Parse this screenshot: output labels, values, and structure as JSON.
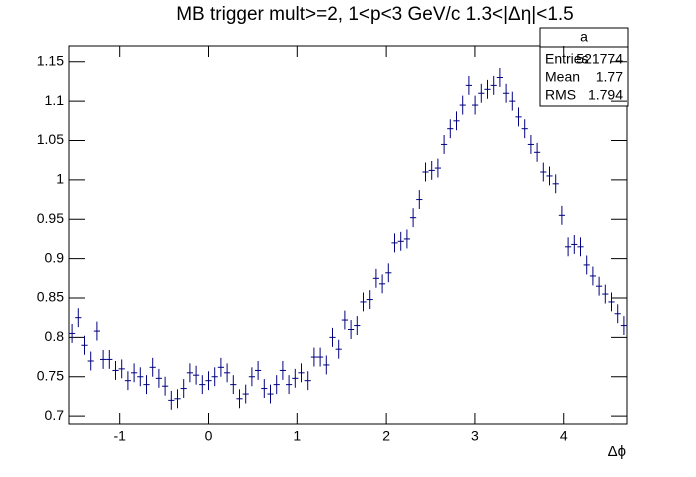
{
  "chart_data": {
    "type": "errorbar-histogram",
    "title": "MB trigger mult>=2, 1<p<3 GeV/c 1.3<|Δη|<1.5",
    "x_label": "Δϕ",
    "color": "#000080",
    "xlim": [
      -1.5708,
      4.7124
    ],
    "xticks": [
      -1,
      0,
      1,
      2,
      3,
      4
    ],
    "ylim": [
      0.69,
      1.17
    ],
    "yticks": [
      0.7,
      0.75,
      0.8,
      0.85,
      0.9,
      0.95,
      1,
      1.05,
      1.1,
      1.15
    ],
    "error": 0.012,
    "values": [
      0.805,
      0.825,
      0.79,
      0.77,
      0.808,
      0.772,
      0.772,
      0.758,
      0.76,
      0.745,
      0.755,
      0.75,
      0.74,
      0.762,
      0.748,
      0.738,
      0.72,
      0.722,
      0.735,
      0.755,
      0.752,
      0.74,
      0.745,
      0.75,
      0.762,
      0.755,
      0.74,
      0.722,
      0.728,
      0.75,
      0.758,
      0.735,
      0.728,
      0.74,
      0.758,
      0.74,
      0.748,
      0.755,
      0.745,
      0.775,
      0.775,
      0.765,
      0.8,
      0.785,
      0.822,
      0.81,
      0.815,
      0.845,
      0.848,
      0.875,
      0.868,
      0.882,
      0.92,
      0.922,
      0.925,
      0.952,
      0.975,
      1.01,
      1.012,
      1.015,
      1.045,
      1.065,
      1.075,
      1.095,
      1.12,
      1.095,
      1.11,
      1.115,
      1.12,
      1.13,
      1.11,
      1.1,
      1.08,
      1.065,
      1.045,
      1.035,
      1.01,
      1.005,
      0.995,
      0.955,
      0.915,
      0.918,
      0.915,
      0.892,
      0.878,
      0.865,
      0.855,
      0.845,
      0.83,
      0.815
    ],
    "stats": {
      "name": "a",
      "labels": [
        "Entries",
        "Mean",
        "RMS"
      ],
      "values": [
        521774,
        1.77,
        1.794
      ]
    }
  }
}
